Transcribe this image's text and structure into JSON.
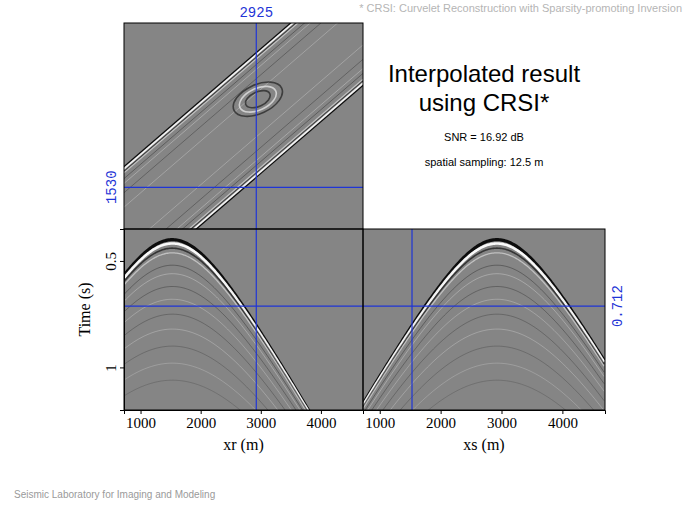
{
  "chart_data": {
    "type": "seismic_cube",
    "title": "Interpolated result using CRSI*",
    "annotations": [
      "SNR = 16.92 dB",
      "spatial sampling: 12.5 m"
    ],
    "footnote": "* CRSI: Curvelet Reconstruction with Sparsity-promoting Inversion",
    "source": "Seismic Laboratory for Imaging and Modeling",
    "slices": {
      "xr": 2925,
      "xs": 1530,
      "time": 0.712
    },
    "panels": [
      {
        "type": "time_slice",
        "xlim": [
          725,
          4700
        ],
        "ylim": [
          725,
          4700
        ],
        "tick_labels": false
      },
      {
        "type": "shot_gather",
        "x_label": "xr (m)",
        "y_label": "Time (s)",
        "xlim": [
          725,
          4700
        ],
        "xticks": [
          1000,
          2000,
          3000,
          4000
        ],
        "ylim": [
          0.35,
          1.2
        ],
        "yticks": [
          0.5,
          1
        ],
        "tick_labels": true
      },
      {
        "type": "receiver_gather",
        "x_label": "xs (m)",
        "xlim": [
          725,
          4700
        ],
        "xticks": [
          1000,
          2000,
          3000,
          4000
        ],
        "ylim": [
          0.35,
          1.2
        ],
        "tick_labels": "x"
      }
    ]
  }
}
